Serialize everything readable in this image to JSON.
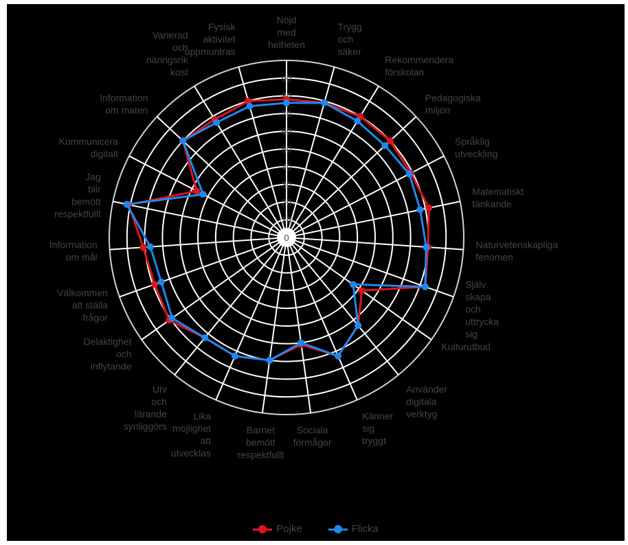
{
  "chart_data": {
    "type": "radar",
    "axes": [
      "Nöjd med helheten",
      "Trygg och säker",
      "Rekommendera förskolan",
      "Pedagogiska miljön",
      "Språklig utveckling",
      "Matematiskt tänkande",
      "Naturvetenskapliga fenomen",
      "Själv skapa och uttrycka sig",
      "Kulturutbud",
      "Använder digitala verktyg",
      "Känner sig tryggt",
      "Sociala förmågor",
      "Barnet bemött respektfullt",
      "Lika möjlighet att utvecklas",
      "Utv och lärande synliggörs",
      "Delaktighet och inflytande",
      "Välkommen att ställa frågor",
      "Information om mål",
      "Jag blir bemött respektfullt",
      "Kommunicera digitalt",
      "Information om maten",
      "Varierad och näringsrik kost",
      "Fysisk aktivitet uppmuntras"
    ],
    "axis_label_lines": [
      [
        "Nöjd",
        "med",
        "helheten"
      ],
      [
        "Trygg",
        "och",
        "säker"
      ],
      [
        "Rekommendera",
        "förskolan"
      ],
      [
        "Pedagogiska",
        "miljön"
      ],
      [
        "Språklig",
        "utveckling"
      ],
      [
        "Matematiskt",
        "tänkande"
      ],
      [
        "Naturvetenskapliga",
        "fenomen"
      ],
      [
        "Själv",
        "skapa",
        "och",
        "uttrycka",
        "sig"
      ],
      [
        "Kulturutbud"
      ],
      [
        "Använder",
        "digitala",
        "verktyg"
      ],
      [
        "Känner",
        "sig",
        "tryggt"
      ],
      [
        "Sociala",
        "förmågor"
      ],
      [
        "Barnet",
        "bemött",
        "respektfullt"
      ],
      [
        "Lika",
        "möjlighet",
        "att",
        "utvecklas"
      ],
      [
        "Utv",
        "och",
        "lärande",
        "synliggörs"
      ],
      [
        "Delaktighet",
        "och",
        "inflytande"
      ],
      [
        "Välkommen",
        "att ställa",
        "frågor"
      ],
      [
        "Information",
        "om mål"
      ],
      [
        "Jag",
        "blir",
        "bemött",
        "respektfullt"
      ],
      [
        "Kommunicera",
        "digitalt"
      ],
      [
        "Information",
        "om maten"
      ],
      [
        "Varierad",
        "och",
        "näringsrik",
        "kost"
      ],
      [
        "Fysisk",
        "aktivitet",
        "uppmuntras"
      ]
    ],
    "r_ticks": [
      0,
      10,
      20,
      30,
      40,
      50,
      60,
      70,
      80,
      90
    ],
    "r_max": 100,
    "grid": true,
    "legend_position": "bottom",
    "series": [
      {
        "name": "Pojke",
        "color": "#e0141e",
        "values": [
          78,
          79,
          80,
          80,
          79,
          82,
          80,
          83,
          52,
          64,
          73,
          61,
          70,
          73,
          73,
          81,
          79,
          81,
          91,
          57,
          80,
          78,
          80
        ]
      },
      {
        "name": "Flicka",
        "color": "#1f87f0",
        "values": [
          76,
          79,
          77,
          76,
          78,
          77,
          79,
          83,
          46,
          64,
          73,
          60,
          70,
          73,
          73,
          79,
          75,
          77,
          92,
          53,
          80,
          76,
          77
        ]
      }
    ]
  }
}
